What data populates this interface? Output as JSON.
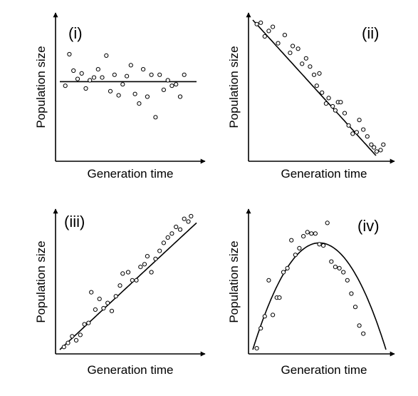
{
  "chart_data": [
    {
      "type": "scatter",
      "panel_label": "(i)",
      "xlabel": "Generation time",
      "ylabel": "Population size",
      "xlim": [
        0,
        100
      ],
      "ylim": [
        0,
        100
      ],
      "fit": {
        "kind": "linear",
        "slope": 0,
        "intercept": 55
      },
      "points": [
        [
          4,
          52
        ],
        [
          7,
          75
        ],
        [
          10,
          63
        ],
        [
          13,
          57
        ],
        [
          16,
          61
        ],
        [
          19,
          50
        ],
        [
          22,
          56
        ],
        [
          25,
          58
        ],
        [
          28,
          64
        ],
        [
          31,
          58
        ],
        [
          34,
          74
        ],
        [
          37,
          48
        ],
        [
          40,
          60
        ],
        [
          43,
          45
        ],
        [
          46,
          53
        ],
        [
          49,
          59
        ],
        [
          52,
          67
        ],
        [
          55,
          46
        ],
        [
          58,
          39
        ],
        [
          61,
          64
        ],
        [
          64,
          44
        ],
        [
          67,
          60
        ],
        [
          70,
          29
        ],
        [
          73,
          60
        ],
        [
          76,
          49
        ],
        [
          79,
          56
        ],
        [
          82,
          52
        ],
        [
          85,
          53
        ],
        [
          88,
          44
        ],
        [
          91,
          60
        ]
      ]
    },
    {
      "type": "scatter",
      "panel_label": "(ii)",
      "xlabel": "Generation time",
      "ylabel": "Population size",
      "xlim": [
        0,
        100
      ],
      "ylim": [
        0,
        100
      ],
      "fit": {
        "kind": "linear",
        "slope": -1.07,
        "intercept": 100
      },
      "points": [
        [
          3,
          97
        ],
        [
          6,
          98
        ],
        [
          9,
          88
        ],
        [
          12,
          92
        ],
        [
          15,
          95
        ],
        [
          19,
          83
        ],
        [
          24,
          89
        ],
        [
          28,
          76
        ],
        [
          30,
          81
        ],
        [
          34,
          79
        ],
        [
          37,
          68
        ],
        [
          40,
          72
        ],
        [
          43,
          66
        ],
        [
          46,
          60
        ],
        [
          48,
          52
        ],
        [
          50,
          61
        ],
        [
          52,
          47
        ],
        [
          55,
          39
        ],
        [
          57,
          43
        ],
        [
          60,
          37
        ],
        [
          62,
          34
        ],
        [
          64,
          40
        ],
        [
          66,
          40
        ],
        [
          69,
          32
        ],
        [
          72,
          23
        ],
        [
          75,
          17
        ],
        [
          78,
          18
        ],
        [
          80,
          27
        ],
        [
          83,
          20
        ],
        [
          86,
          15
        ],
        [
          89,
          9
        ],
        [
          91,
          7
        ],
        [
          93,
          4
        ],
        [
          96,
          5
        ],
        [
          98,
          9
        ]
      ]
    },
    {
      "type": "scatter",
      "panel_label": "(iii)",
      "xlabel": "Generation time",
      "ylabel": "Population size",
      "xlim": [
        0,
        100
      ],
      "ylim": [
        0,
        100
      ],
      "fit": {
        "kind": "linear",
        "slope": 0.95,
        "intercept": 0
      },
      "points": [
        [
          3,
          2
        ],
        [
          6,
          5
        ],
        [
          9,
          10
        ],
        [
          12,
          7
        ],
        [
          15,
          11
        ],
        [
          18,
          19
        ],
        [
          21,
          20
        ],
        [
          23,
          43
        ],
        [
          26,
          30
        ],
        [
          29,
          38
        ],
        [
          32,
          31
        ],
        [
          35,
          35
        ],
        [
          38,
          29
        ],
        [
          41,
          40
        ],
        [
          44,
          48
        ],
        [
          46,
          57
        ],
        [
          50,
          58
        ],
        [
          53,
          52
        ],
        [
          56,
          52
        ],
        [
          59,
          62
        ],
        [
          62,
          64
        ],
        [
          64,
          70
        ],
        [
          67,
          58
        ],
        [
          70,
          68
        ],
        [
          73,
          74
        ],
        [
          76,
          80
        ],
        [
          79,
          84
        ],
        [
          82,
          87
        ],
        [
          85,
          92
        ],
        [
          88,
          90
        ],
        [
          91,
          98
        ],
        [
          94,
          96
        ],
        [
          96,
          100
        ]
      ]
    },
    {
      "type": "scatter",
      "panel_label": "(iv)",
      "xlabel": "Generation time",
      "ylabel": "Population size",
      "xlim": [
        0,
        100
      ],
      "ylim": [
        0,
        100
      ],
      "fit": {
        "kind": "quadratic",
        "vertex": [
          50,
          80
        ],
        "y_at_x0": 0
      },
      "points": [
        [
          3,
          1
        ],
        [
          6,
          16
        ],
        [
          9,
          25
        ],
        [
          12,
          52
        ],
        [
          15,
          26
        ],
        [
          18,
          39
        ],
        [
          20,
          39
        ],
        [
          23,
          58
        ],
        [
          26,
          61
        ],
        [
          29,
          82
        ],
        [
          32,
          71
        ],
        [
          35,
          76
        ],
        [
          38,
          85
        ],
        [
          41,
          88
        ],
        [
          44,
          87
        ],
        [
          47,
          87
        ],
        [
          50,
          79
        ],
        [
          53,
          78
        ],
        [
          56,
          95
        ],
        [
          59,
          66
        ],
        [
          62,
          62
        ],
        [
          65,
          61
        ],
        [
          68,
          58
        ],
        [
          71,
          52
        ],
        [
          74,
          42
        ],
        [
          77,
          32
        ],
        [
          80,
          18
        ],
        [
          83,
          12
        ]
      ]
    }
  ]
}
